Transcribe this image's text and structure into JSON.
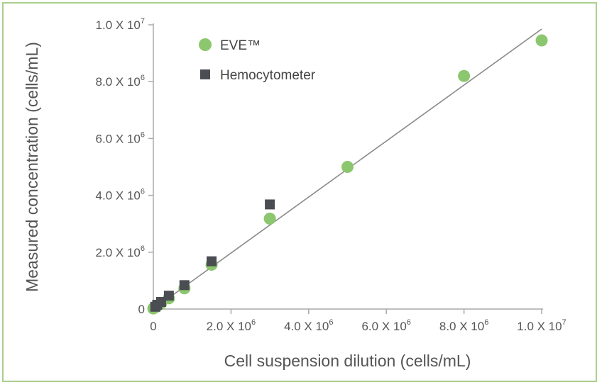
{
  "chart_data": {
    "type": "scatter",
    "xlabel": "Cell suspension dilution (cells/mL)",
    "ylabel": "Measured concentration (cells/mL)",
    "xlim": [
      0,
      10000000
    ],
    "ylim": [
      0,
      10000000
    ],
    "x_ticks": [
      {
        "value": 0,
        "mantissa": "0",
        "exponent": ""
      },
      {
        "value": 2000000,
        "mantissa": "2.0 X 10",
        "exponent": "6"
      },
      {
        "value": 4000000,
        "mantissa": "4.0 X 10",
        "exponent": "6"
      },
      {
        "value": 6000000,
        "mantissa": "6.0 X 10",
        "exponent": "6"
      },
      {
        "value": 8000000,
        "mantissa": "8.0 X 10",
        "exponent": "6"
      },
      {
        "value": 10000000,
        "mantissa": "1.0 X 10",
        "exponent": "7"
      }
    ],
    "y_ticks": [
      {
        "value": 0,
        "mantissa": "0",
        "exponent": ""
      },
      {
        "value": 2000000,
        "mantissa": "2.0 X 10",
        "exponent": "6"
      },
      {
        "value": 4000000,
        "mantissa": "4.0 X 10",
        "exponent": "6"
      },
      {
        "value": 6000000,
        "mantissa": "6.0 X 10",
        "exponent": "6"
      },
      {
        "value": 8000000,
        "mantissa": "8.0 X 10",
        "exponent": "6"
      },
      {
        "value": 10000000,
        "mantissa": "1.0 X 10",
        "exponent": "7"
      }
    ],
    "legend_position": "top-left",
    "series": [
      {
        "name": "EVE™",
        "marker": "circle",
        "color": "#8cc66e",
        "x": [
          0,
          50000,
          100000,
          200000,
          400000,
          800000,
          1500000,
          3000000,
          5000000,
          8000000,
          10000000
        ],
        "y": [
          20000,
          60000,
          110000,
          200000,
          380000,
          730000,
          1560000,
          3180000,
          5000000,
          8200000,
          9450000
        ]
      },
      {
        "name": "Hemocytometer",
        "marker": "square",
        "color": "#4a4d52",
        "x": [
          50000,
          100000,
          200000,
          400000,
          800000,
          1500000,
          3000000
        ],
        "y": [
          80000,
          150000,
          250000,
          470000,
          840000,
          1680000,
          3680000
        ]
      }
    ],
    "trendline": {
      "color": "#8a8a8a",
      "x": [
        0,
        10000000
      ],
      "y": [
        0,
        9850000
      ]
    }
  }
}
